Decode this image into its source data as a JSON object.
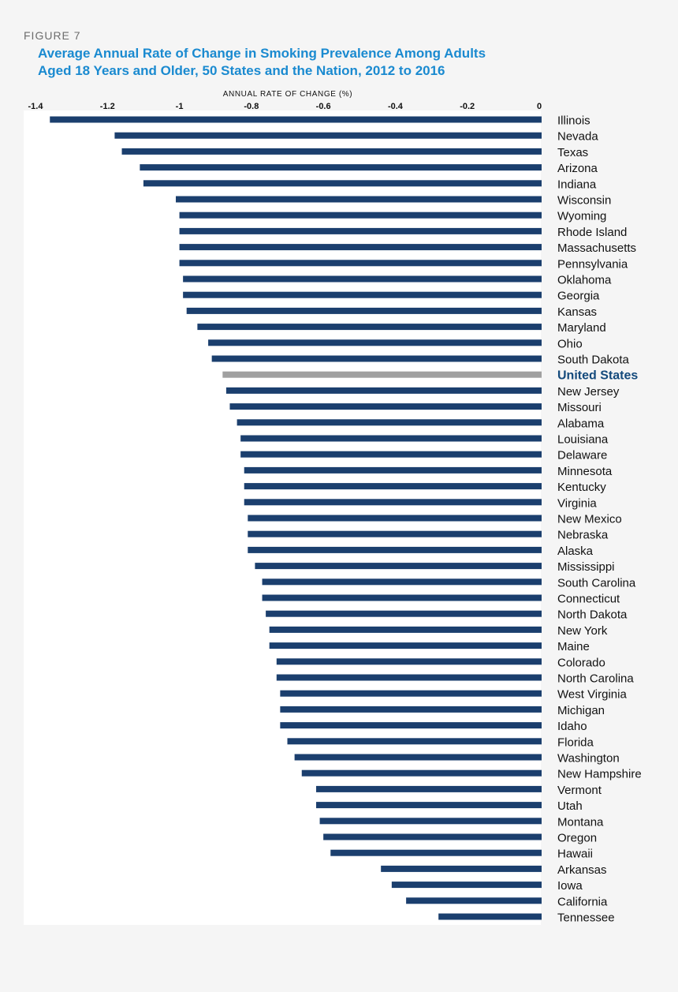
{
  "figure_label": "FIGURE 7",
  "chart_data": {
    "type": "bar",
    "orientation": "horizontal",
    "title": "Average Annual Rate of Change in Smoking Prevalence Among Adults Aged 18 Years and Older, 50 States and the Nation, 2012 to 2016",
    "title_lines": [
      "Average Annual Rate of Change in Smoking Prevalence Among Adults",
      "Aged 18 Years and Older, 50 States and the Nation, 2012 to 2016"
    ],
    "xlabel": "ANNUAL RATE OF CHANGE (%)",
    "xlim": [
      -1.4,
      0
    ],
    "ticks": [
      -1.4,
      -1.2,
      -1,
      -0.8,
      -0.6,
      -0.4,
      -0.2,
      0
    ],
    "tick_labels": [
      "-1.4",
      "-1.2",
      "-1",
      "-0.8",
      "-0.6",
      "-0.4",
      "-0.2",
      "0"
    ],
    "bar_color": "#1b3f6e",
    "highlight_color": "#a0a0a0",
    "highlight_label_color": "#144a7c",
    "highlight": "United States",
    "categories": [
      "Illinois",
      "Nevada",
      "Texas",
      "Arizona",
      "Indiana",
      "Wisconsin",
      "Wyoming",
      "Rhode Island",
      "Massachusetts",
      "Pennsylvania",
      "Oklahoma",
      "Georgia",
      "Kansas",
      "Maryland",
      "Ohio",
      "South Dakota",
      "United States",
      "New Jersey",
      "Missouri",
      "Alabama",
      "Louisiana",
      "Delaware",
      "Minnesota",
      "Kentucky",
      "Virginia",
      "New Mexico",
      "Nebraska",
      "Alaska",
      "Mississippi",
      "South Carolina",
      "Connecticut",
      "North Dakota",
      "New York",
      "Maine",
      "Colorado",
      "North Carolina",
      "West Virginia",
      "Michigan",
      "Idaho",
      "Florida",
      "Washington",
      "New Hampshire",
      "Vermont",
      "Utah",
      "Montana",
      "Oregon",
      "Hawaii",
      "Arkansas",
      "Iowa",
      "California",
      "Tennessee"
    ],
    "values": [
      -1.36,
      -1.18,
      -1.16,
      -1.11,
      -1.1,
      -1.01,
      -1.0,
      -1.0,
      -1.0,
      -1.0,
      -0.99,
      -0.99,
      -0.98,
      -0.95,
      -0.92,
      -0.91,
      -0.88,
      -0.87,
      -0.86,
      -0.84,
      -0.83,
      -0.83,
      -0.82,
      -0.82,
      -0.82,
      -0.81,
      -0.81,
      -0.81,
      -0.79,
      -0.77,
      -0.77,
      -0.76,
      -0.75,
      -0.75,
      -0.73,
      -0.73,
      -0.72,
      -0.72,
      -0.72,
      -0.7,
      -0.68,
      -0.66,
      -0.62,
      -0.62,
      -0.61,
      -0.6,
      -0.58,
      -0.44,
      -0.41,
      -0.37,
      -0.28
    ]
  }
}
